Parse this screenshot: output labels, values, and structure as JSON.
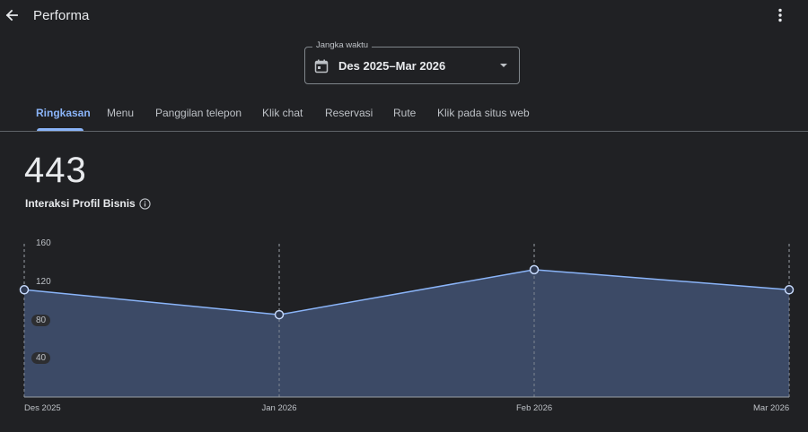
{
  "header": {
    "title": "Performa",
    "back_icon": "arrow-left-icon",
    "more_icon": "more-vert-icon"
  },
  "range": {
    "legend": "Jangka waktu",
    "value": "Des 2025–Mar 2026",
    "icon": "calendar-icon"
  },
  "tabs": [
    {
      "label": "Ringkasan",
      "active": true
    },
    {
      "label": "Menu"
    },
    {
      "label": "Panggilan telepon"
    },
    {
      "label": "Klik chat"
    },
    {
      "label": "Reservasi"
    },
    {
      "label": "Rute"
    },
    {
      "label": "Klik pada situs web"
    }
  ],
  "metric": {
    "value": "443",
    "label": "Interaksi Profil Bisnis"
  },
  "colors": {
    "accent": "#8ab4f8",
    "line": "#8ab4f8",
    "area": "#3c4a66",
    "background": "#202124"
  },
  "chart_data": {
    "type": "area",
    "categories": [
      "Des 2025",
      "Jan 2026",
      "Feb 2026",
      "Mar 2026"
    ],
    "values": [
      112,
      86,
      133,
      112
    ],
    "yticks": [
      160,
      120,
      80,
      40
    ],
    "ylim": [
      0,
      160
    ],
    "grid": "vertical-dashed"
  }
}
